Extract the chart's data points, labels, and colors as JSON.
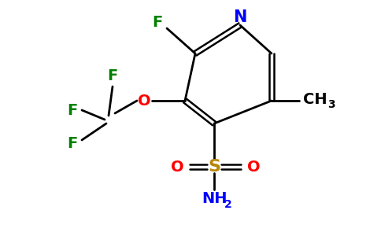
{
  "bg_color": "#ffffff",
  "atom_colors": {
    "N": "#0000ff",
    "O": "#ff0000",
    "F": "#008000",
    "S": "#b8860b",
    "C": "#000000",
    "H": "#000000"
  },
  "bond_color": "#000000",
  "figsize": [
    4.84,
    3.0
  ],
  "dpi": 100
}
